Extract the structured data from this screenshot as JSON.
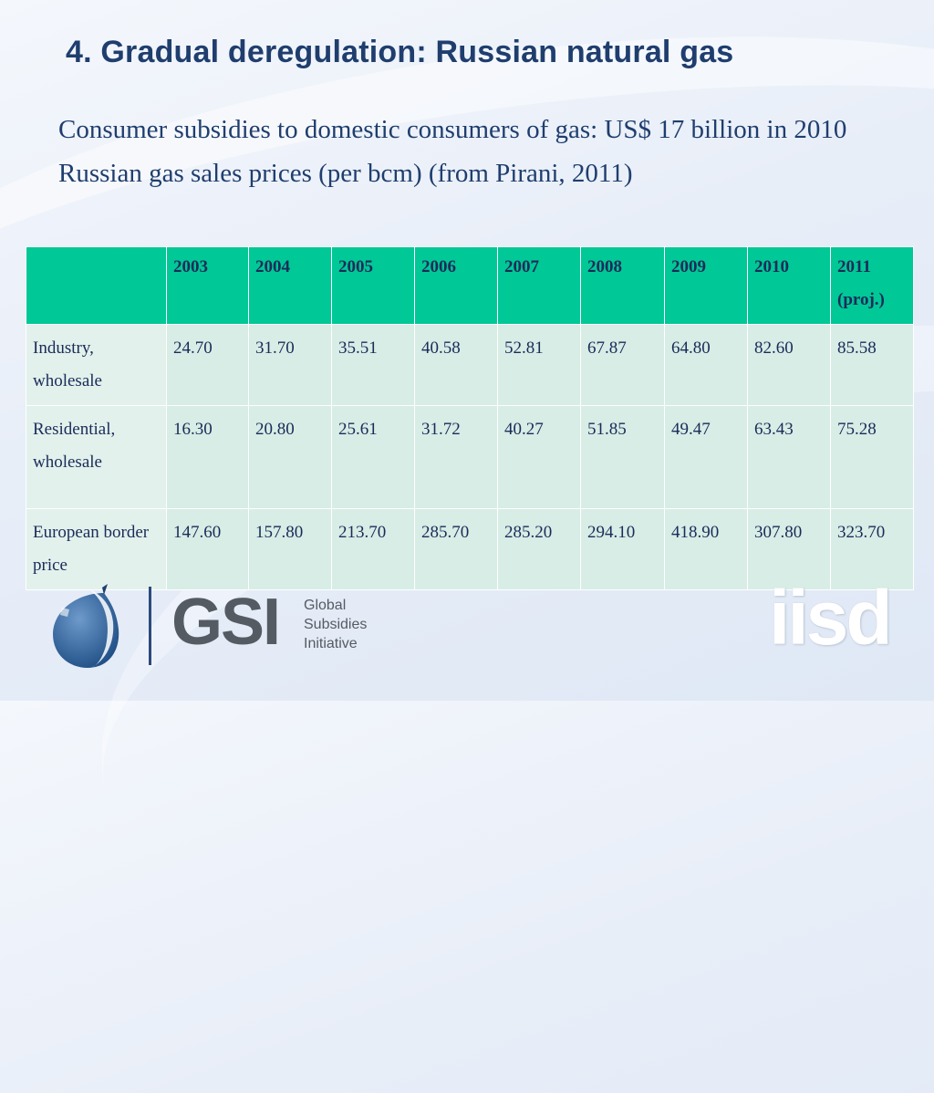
{
  "slide": {
    "title": "4. Gradual deregulation: Russian natural gas",
    "bullets": [
      "Consumer subsidies to domestic consumers of gas: US$ 17 billion in 2010",
      "Russian gas sales prices (per bcm) (from Pirani, 2011)"
    ]
  },
  "table": {
    "headers": [
      "",
      "2003",
      "2004",
      "2005",
      "2006",
      "2007",
      "2008",
      "2009",
      "2010",
      "2011 (proj.)"
    ],
    "rows": [
      {
        "label": "Industry, wholesale",
        "values": [
          "24.70",
          "31.70",
          "35.51",
          "40.58",
          "52.81",
          "67.87",
          "64.80",
          "82.60",
          "85.58"
        ]
      },
      {
        "label": "Residential, wholesale",
        "values": [
          "16.30",
          "20.80",
          "25.61",
          "31.72",
          "40.27",
          "51.85",
          "49.47",
          "63.43",
          "75.28"
        ]
      },
      {
        "label": "European border price",
        "values": [
          "147.60",
          "157.80",
          "213.70",
          "285.70",
          "285.20",
          "294.10",
          "418.90",
          "307.80",
          "323.70"
        ]
      }
    ],
    "header_color": "#00c896",
    "cell_color": "#d7ede5"
  },
  "footer": {
    "gsi_logo_text": "GSI",
    "gsi_lines": [
      "Global",
      "Subsidies",
      "Initiative"
    ],
    "iisd_logo_text": "iisd",
    "globe_icon": "globe-icon"
  }
}
